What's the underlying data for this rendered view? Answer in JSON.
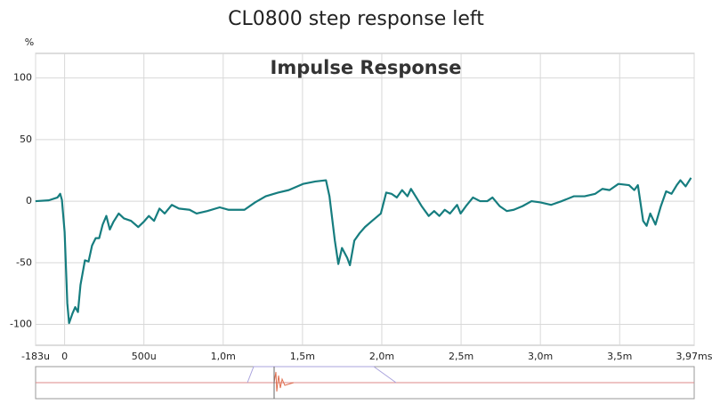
{
  "chart_data": {
    "type": "line",
    "title": "CL0800 step response left",
    "subtitle": "Impulse Response",
    "ylabel": "%",
    "x": [
      -0.184,
      -0.1,
      -0.045,
      -0.028,
      -0.017,
      0,
      0.017,
      0.028,
      0.05,
      0.067,
      0.084,
      0.1,
      0.128,
      0.151,
      0.173,
      0.196,
      0.218,
      0.24,
      0.263,
      0.285,
      0.307,
      0.341,
      0.374,
      0.419,
      0.464,
      0.497,
      0.531,
      0.564,
      0.598,
      0.631,
      0.676,
      0.721,
      0.788,
      0.832,
      0.899,
      0.978,
      1.034,
      1.078,
      1.134,
      1.201,
      1.268,
      1.346,
      1.413,
      1.503,
      1.581,
      1.648,
      1.67,
      1.704,
      1.726,
      1.749,
      1.782,
      1.799,
      1.827,
      1.86,
      1.894,
      1.939,
      1.994,
      2.028,
      2.061,
      2.095,
      2.128,
      2.162,
      2.184,
      2.218,
      2.251,
      2.296,
      2.33,
      2.363,
      2.397,
      2.43,
      2.475,
      2.497,
      2.531,
      2.575,
      2.62,
      2.665,
      2.698,
      2.743,
      2.788,
      2.832,
      2.888,
      2.944,
      3.0,
      3.067,
      3.134,
      3.212,
      3.279,
      3.346,
      3.391,
      3.436,
      3.492,
      3.559,
      3.592,
      3.615,
      3.648,
      3.67,
      3.693,
      3.726,
      3.76,
      3.793,
      3.827,
      3.86,
      3.883,
      3.916,
      3.95
    ],
    "series": [
      {
        "color": "#167d7f",
        "values": [
          0,
          0.7,
          3,
          6,
          1,
          -25,
          -83,
          -99,
          -91,
          -86,
          -90,
          -68,
          -48,
          -49,
          -36,
          -30,
          -30,
          -19,
          -12,
          -23,
          -17,
          -10,
          -14,
          -16,
          -21,
          -17,
          -12,
          -16,
          -6,
          -10,
          -3,
          -6,
          -7,
          -10,
          -8,
          -5,
          -7,
          -7,
          -7,
          -1,
          4,
          7,
          9,
          14,
          16,
          17,
          4,
          -32,
          -51,
          -38,
          -46,
          -52,
          -32,
          -26,
          -21,
          -16,
          -10,
          7,
          6,
          3,
          9,
          4,
          10,
          3,
          -4,
          -12,
          -8,
          -12,
          -7,
          -10,
          -3,
          -10,
          -4,
          3,
          0,
          0,
          3,
          -4,
          -8,
          -7,
          -4,
          0,
          -1,
          -3,
          0,
          4,
          4,
          6,
          10,
          9,
          14,
          13,
          9,
          13,
          -16,
          -20,
          -10,
          -19,
          -4,
          8,
          6,
          13,
          17,
          12,
          19
        ]
      }
    ],
    "xlim": [
      -0.183,
      3.97
    ],
    "xticks": [
      {
        "value": -0.183,
        "label": "-183u"
      },
      0,
      {
        "value": 0.5,
        "label": "500u"
      },
      {
        "value": 1.0,
        "label": "1,0m"
      },
      {
        "value": 1.5,
        "label": "1,5m"
      },
      {
        "value": 2.0,
        "label": "2,0m"
      },
      {
        "value": 2.5,
        "label": "2,5m"
      },
      {
        "value": 3.0,
        "label": "3,0m"
      },
      {
        "value": 3.5,
        "label": "3,5m"
      },
      {
        "value": 3.97,
        "label": "3,97ms"
      }
    ],
    "ylim": [
      -117,
      120
    ],
    "yticks": [
      100,
      50,
      0,
      -50,
      -100
    ],
    "grid": true
  }
}
